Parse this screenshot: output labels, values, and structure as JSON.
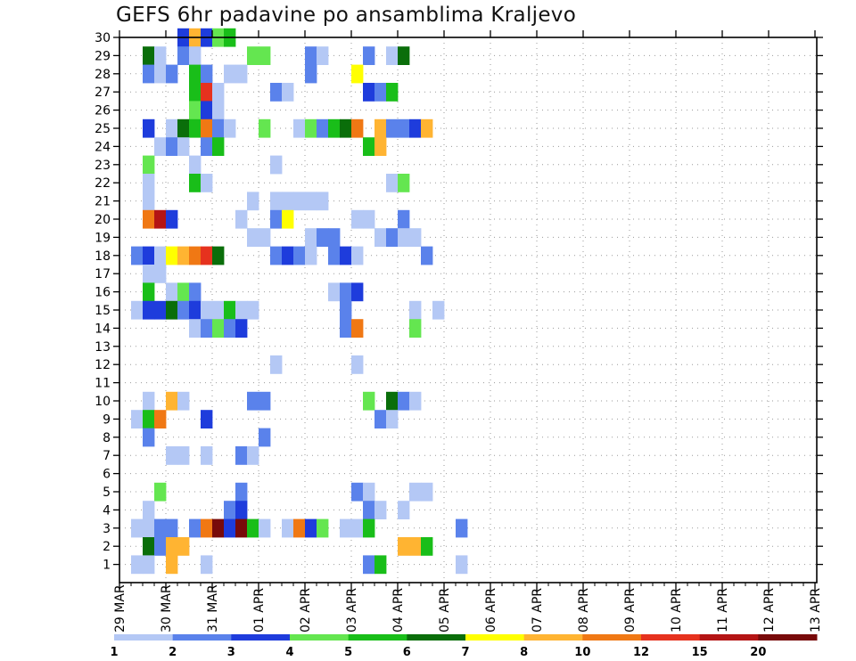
{
  "chart_data": {
    "type": "heatmap",
    "title": "GEFS 6hr padavine po ansamblima Kraljevo",
    "xlabel": "",
    "ylabel": "",
    "x_start": "2025-03-29T00Z",
    "x_step_hours": 6,
    "x_ticks": [
      "29 MAR",
      "30 MAR",
      "31 MAR",
      "01 APR",
      "02 APR",
      "03 APR",
      "04 APR",
      "05 APR",
      "06 APR",
      "07 APR",
      "08 APR",
      "09 APR",
      "10 APR",
      "11 APR",
      "12 APR",
      "13 APR"
    ],
    "y_ticks": [
      1,
      2,
      3,
      4,
      5,
      6,
      7,
      8,
      9,
      10,
      11,
      12,
      13,
      14,
      15,
      16,
      17,
      18,
      19,
      20,
      21,
      22,
      23,
      24,
      25,
      26,
      27,
      28,
      29,
      30
    ],
    "ylim": [
      0,
      30
    ],
    "grid": true,
    "colorbar": {
      "labels": [
        "1",
        "2",
        "3",
        "4",
        "5",
        "6",
        "7",
        "8",
        "10",
        "12",
        "15",
        "20"
      ],
      "colors": [
        "#b4c8f5",
        "#5a82eb",
        "#1e3cdc",
        "#64e650",
        "#19be19",
        "#0a6e0a",
        "#ffff00",
        "#ffb432",
        "#f07814",
        "#e6321e",
        "#b41414",
        "#780a0a"
      ]
    },
    "cells": [
      [
        5,
        30,
        2
      ],
      [
        6,
        30,
        7
      ],
      [
        7,
        30,
        2
      ],
      [
        8,
        30,
        3
      ],
      [
        9,
        30,
        4
      ],
      [
        2,
        29,
        5
      ],
      [
        3,
        29,
        0
      ],
      [
        5,
        29,
        1
      ],
      [
        6,
        29,
        0
      ],
      [
        11,
        29,
        3
      ],
      [
        12,
        29,
        3
      ],
      [
        16,
        29,
        1
      ],
      [
        17,
        29,
        0
      ],
      [
        21,
        29,
        1
      ],
      [
        23,
        29,
        0
      ],
      [
        24,
        29,
        5
      ],
      [
        2,
        28,
        1
      ],
      [
        3,
        28,
        0
      ],
      [
        4,
        28,
        1
      ],
      [
        6,
        28,
        4
      ],
      [
        7,
        28,
        1
      ],
      [
        9,
        28,
        0
      ],
      [
        10,
        28,
        0
      ],
      [
        16,
        28,
        1
      ],
      [
        20,
        28,
        6
      ],
      [
        6,
        27,
        4
      ],
      [
        7,
        27,
        9
      ],
      [
        8,
        27,
        0
      ],
      [
        13,
        27,
        1
      ],
      [
        14,
        27,
        0
      ],
      [
        21,
        27,
        2
      ],
      [
        22,
        27,
        1
      ],
      [
        23,
        27,
        4
      ],
      [
        6,
        26,
        3
      ],
      [
        7,
        26,
        2
      ],
      [
        8,
        26,
        0
      ],
      [
        2,
        25,
        2
      ],
      [
        4,
        25,
        0
      ],
      [
        5,
        25,
        5
      ],
      [
        6,
        25,
        4
      ],
      [
        7,
        25,
        8
      ],
      [
        8,
        25,
        1
      ],
      [
        9,
        25,
        0
      ],
      [
        12,
        25,
        3
      ],
      [
        15,
        25,
        0
      ],
      [
        16,
        25,
        3
      ],
      [
        17,
        25,
        1
      ],
      [
        18,
        25,
        4
      ],
      [
        19,
        25,
        5
      ],
      [
        20,
        25,
        8
      ],
      [
        22,
        25,
        7
      ],
      [
        23,
        25,
        1
      ],
      [
        24,
        25,
        1
      ],
      [
        25,
        25,
        2
      ],
      [
        26,
        25,
        7
      ],
      [
        3,
        24,
        0
      ],
      [
        4,
        24,
        1
      ],
      [
        5,
        24,
        0
      ],
      [
        7,
        24,
        1
      ],
      [
        8,
        24,
        4
      ],
      [
        21,
        24,
        4
      ],
      [
        22,
        24,
        7
      ],
      [
        2,
        23,
        3
      ],
      [
        6,
        23,
        0
      ],
      [
        13,
        23,
        0
      ],
      [
        2,
        22,
        0
      ],
      [
        6,
        22,
        4
      ],
      [
        7,
        22,
        0
      ],
      [
        23,
        22,
        0
      ],
      [
        24,
        22,
        3
      ],
      [
        2,
        21,
        0
      ],
      [
        11,
        21,
        0
      ],
      [
        13,
        21,
        0
      ],
      [
        14,
        21,
        0
      ],
      [
        15,
        21,
        0
      ],
      [
        16,
        21,
        0
      ],
      [
        17,
        21,
        0
      ],
      [
        2,
        20,
        8
      ],
      [
        3,
        20,
        10
      ],
      [
        4,
        20,
        2
      ],
      [
        10,
        20,
        0
      ],
      [
        13,
        20,
        1
      ],
      [
        14,
        20,
        6
      ],
      [
        20,
        20,
        0
      ],
      [
        21,
        20,
        0
      ],
      [
        24,
        20,
        1
      ],
      [
        11,
        19,
        0
      ],
      [
        12,
        19,
        0
      ],
      [
        16,
        19,
        0
      ],
      [
        17,
        19,
        1
      ],
      [
        18,
        19,
        1
      ],
      [
        22,
        19,
        0
      ],
      [
        23,
        19,
        1
      ],
      [
        24,
        19,
        0
      ],
      [
        25,
        19,
        0
      ],
      [
        1,
        18,
        1
      ],
      [
        2,
        18,
        2
      ],
      [
        3,
        18,
        0
      ],
      [
        4,
        18,
        6
      ],
      [
        5,
        18,
        7
      ],
      [
        6,
        18,
        8
      ],
      [
        7,
        18,
        9
      ],
      [
        8,
        18,
        5
      ],
      [
        13,
        18,
        1
      ],
      [
        14,
        18,
        2
      ],
      [
        15,
        18,
        1
      ],
      [
        16,
        18,
        0
      ],
      [
        18,
        18,
        1
      ],
      [
        19,
        18,
        2
      ],
      [
        20,
        18,
        0
      ],
      [
        26,
        18,
        1
      ],
      [
        2,
        17,
        0
      ],
      [
        3,
        17,
        0
      ],
      [
        2,
        16,
        4
      ],
      [
        4,
        16,
        0
      ],
      [
        5,
        16,
        3
      ],
      [
        6,
        16,
        1
      ],
      [
        18,
        16,
        0
      ],
      [
        19,
        16,
        1
      ],
      [
        20,
        16,
        2
      ],
      [
        1,
        15,
        0
      ],
      [
        2,
        15,
        2
      ],
      [
        3,
        15,
        2
      ],
      [
        4,
        15,
        5
      ],
      [
        5,
        15,
        1
      ],
      [
        6,
        15,
        2
      ],
      [
        7,
        15,
        0
      ],
      [
        8,
        15,
        0
      ],
      [
        9,
        15,
        4
      ],
      [
        10,
        15,
        0
      ],
      [
        11,
        15,
        0
      ],
      [
        19,
        15,
        1
      ],
      [
        25,
        15,
        0
      ],
      [
        27,
        15,
        0
      ],
      [
        6,
        14,
        0
      ],
      [
        7,
        14,
        1
      ],
      [
        8,
        14,
        3
      ],
      [
        9,
        14,
        1
      ],
      [
        10,
        14,
        2
      ],
      [
        19,
        14,
        1
      ],
      [
        20,
        14,
        8
      ],
      [
        25,
        14,
        3
      ],
      [
        13,
        12,
        0
      ],
      [
        20,
        12,
        0
      ],
      [
        2,
        10,
        0
      ],
      [
        4,
        10,
        7
      ],
      [
        5,
        10,
        0
      ],
      [
        11,
        10,
        1
      ],
      [
        12,
        10,
        1
      ],
      [
        21,
        10,
        3
      ],
      [
        23,
        10,
        5
      ],
      [
        24,
        10,
        1
      ],
      [
        25,
        10,
        0
      ],
      [
        1,
        9,
        0
      ],
      [
        2,
        9,
        4
      ],
      [
        3,
        9,
        8
      ],
      [
        7,
        9,
        2
      ],
      [
        22,
        9,
        1
      ],
      [
        23,
        9,
        0
      ],
      [
        2,
        8,
        1
      ],
      [
        12,
        8,
        1
      ],
      [
        4,
        7,
        0
      ],
      [
        5,
        7,
        0
      ],
      [
        7,
        7,
        0
      ],
      [
        10,
        7,
        1
      ],
      [
        11,
        7,
        0
      ],
      [
        3,
        5,
        3
      ],
      [
        10,
        5,
        1
      ],
      [
        20,
        5,
        1
      ],
      [
        21,
        5,
        0
      ],
      [
        25,
        5,
        0
      ],
      [
        26,
        5,
        0
      ],
      [
        2,
        4,
        0
      ],
      [
        9,
        4,
        1
      ],
      [
        10,
        4,
        2
      ],
      [
        21,
        4,
        1
      ],
      [
        22,
        4,
        0
      ],
      [
        24,
        4,
        0
      ],
      [
        1,
        3,
        0
      ],
      [
        2,
        3,
        0
      ],
      [
        3,
        3,
        1
      ],
      [
        4,
        3,
        1
      ],
      [
        6,
        3,
        1
      ],
      [
        7,
        3,
        8
      ],
      [
        8,
        3,
        11
      ],
      [
        9,
        3,
        2
      ],
      [
        10,
        3,
        11
      ],
      [
        11,
        3,
        4
      ],
      [
        12,
        3,
        0
      ],
      [
        14,
        3,
        0
      ],
      [
        15,
        3,
        8
      ],
      [
        16,
        3,
        2
      ],
      [
        17,
        3,
        3
      ],
      [
        19,
        3,
        0
      ],
      [
        20,
        3,
        0
      ],
      [
        21,
        3,
        4
      ],
      [
        29,
        3,
        1
      ],
      [
        2,
        2,
        5
      ],
      [
        3,
        2,
        1
      ],
      [
        4,
        2,
        7
      ],
      [
        5,
        2,
        7
      ],
      [
        24,
        2,
        7
      ],
      [
        25,
        2,
        7
      ],
      [
        26,
        2,
        4
      ],
      [
        1,
        1,
        0
      ],
      [
        2,
        1,
        0
      ],
      [
        4,
        1,
        7
      ],
      [
        7,
        1,
        0
      ],
      [
        21,
        1,
        1
      ],
      [
        22,
        1,
        4
      ],
      [
        29,
        1,
        0
      ]
    ]
  }
}
